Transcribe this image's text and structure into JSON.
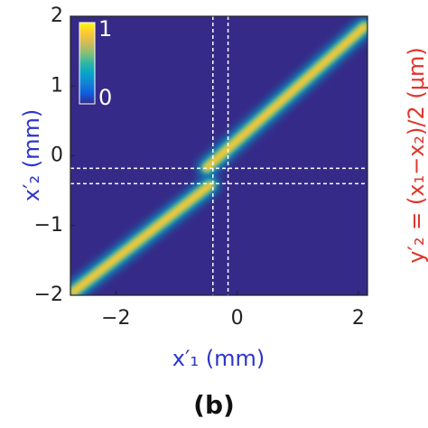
{
  "chart_data": {
    "type": "heatmap",
    "xlabel": "x′₁ (mm)",
    "ylabel": "x′₂ (mm)",
    "y2label": "y′₂ = (x₁−x₂)/2 (μm)",
    "caption": "(b)",
    "xlim": [
      -2.75,
      2.15
    ],
    "ylim": [
      -2,
      2
    ],
    "xticks": [
      {
        "value": -2,
        "label": "−2"
      },
      0,
      2
    ],
    "yticks": [
      {
        "value": -2,
        "label": "−2"
      },
      {
        "value": -1,
        "label": "−1"
      },
      0,
      1,
      2
    ],
    "beams": [
      {
        "x": [
          -2.7,
          -0.45
        ],
        "y": [
          -1.95,
          -0.42
        ]
      },
      {
        "x": [
          -0.5,
          2.1
        ],
        "y": [
          -0.17,
          1.85
        ]
      }
    ],
    "cuts": {
      "x": [
        -0.4,
        -0.15
      ],
      "y": [
        -0.18,
        -0.4
      ]
    },
    "clim": [
      0,
      1
    ],
    "cticks": [
      0,
      1
    ],
    "colormap": [
      "#352a87",
      "#0f5cdd",
      "#1481d6",
      "#06a4ca",
      "#2eb7a4",
      "#87bf77",
      "#d1bb59",
      "#fec832",
      "#f9fb0e"
    ]
  }
}
